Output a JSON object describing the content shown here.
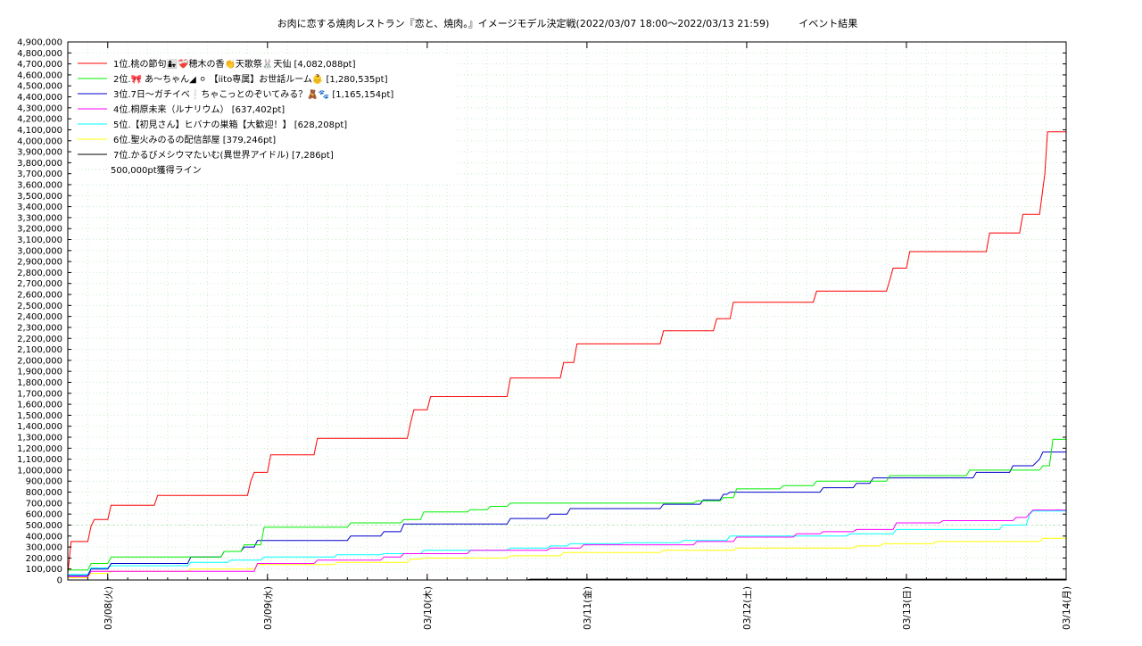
{
  "chart_data": {
    "type": "line",
    "title": "お肉に恋する焼肉レストラン『恋と、焼肉。』イメージモデル決定戦(2022/03/07 18:00～2022/03/13 21:59)　　　イベント結果",
    "xlabel": "",
    "ylabel": "",
    "x_range": [
      "2022-03-07 18:00",
      "2022-03-14 00:00"
    ],
    "ylim": [
      0,
      4900000
    ],
    "ytick_step": 100000,
    "grid": true,
    "legend_position": "top-left",
    "x_ticks": [
      {
        "label": "03/08(火)",
        "t": 6
      },
      {
        "label": "03/09(水)",
        "t": 30
      },
      {
        "label": "03/10(木)",
        "t": 54
      },
      {
        "label": "03/11(金)",
        "t": 78
      },
      {
        "label": "03/12(土)",
        "t": 102
      },
      {
        "label": "03/13(日)",
        "t": 126
      },
      {
        "label": "03/14(月)",
        "t": 150
      }
    ],
    "t_max": 150,
    "series": [
      {
        "name": "1位.桃の節句👩‍👧❤️‍🩹穂木の香👏天歌祭🐰天仙 [4,082,088pt]",
        "color": "#ff0000",
        "points": [
          [
            0,
            60000
          ],
          [
            0.5,
            350000
          ],
          [
            3,
            350000
          ],
          [
            3.5,
            490000
          ],
          [
            4,
            550000
          ],
          [
            6,
            550000
          ],
          [
            6.5,
            680000
          ],
          [
            13,
            680000
          ],
          [
            13.5,
            770000
          ],
          [
            27,
            770000
          ],
          [
            27.5,
            900000
          ],
          [
            28,
            980000
          ],
          [
            30,
            980000
          ],
          [
            30.5,
            1140000
          ],
          [
            37,
            1140000
          ],
          [
            37.5,
            1290000
          ],
          [
            51,
            1290000
          ],
          [
            51.5,
            1430000
          ],
          [
            52,
            1550000
          ],
          [
            54,
            1550000
          ],
          [
            54.5,
            1670000
          ],
          [
            66,
            1670000
          ],
          [
            66.5,
            1840000
          ],
          [
            74,
            1840000
          ],
          [
            74.5,
            1980000
          ],
          [
            76,
            1980000
          ],
          [
            76.5,
            2150000
          ],
          [
            89,
            2150000
          ],
          [
            89.5,
            2270000
          ],
          [
            97,
            2270000
          ],
          [
            97.5,
            2380000
          ],
          [
            99.5,
            2380000
          ],
          [
            100,
            2530000
          ],
          [
            112,
            2530000
          ],
          [
            112.5,
            2630000
          ],
          [
            123,
            2630000
          ],
          [
            123.5,
            2730000
          ],
          [
            124,
            2840000
          ],
          [
            126,
            2840000
          ],
          [
            126.5,
            2990000
          ],
          [
            138,
            2990000
          ],
          [
            138.5,
            3160000
          ],
          [
            143,
            3160000
          ],
          [
            143.5,
            3330000
          ],
          [
            146,
            3330000
          ],
          [
            146.8,
            3700000
          ],
          [
            147.2,
            4082088
          ],
          [
            150,
            4082088
          ]
        ]
      },
      {
        "name": "2位.🎀 あ〜ちゃん◢ ⚪ 【iito専属】お世話ルーム👶 [1,280,535pt]",
        "color": "#00ee00",
        "points": [
          [
            0,
            90000
          ],
          [
            3,
            90000
          ],
          [
            3.5,
            150000
          ],
          [
            6,
            150000
          ],
          [
            6.5,
            210000
          ],
          [
            23,
            210000
          ],
          [
            23.5,
            260000
          ],
          [
            26,
            260000
          ],
          [
            26.5,
            320000
          ],
          [
            29,
            320000
          ],
          [
            29.5,
            480000
          ],
          [
            42,
            480000
          ],
          [
            42.5,
            520000
          ],
          [
            50,
            520000
          ],
          [
            50.5,
            550000
          ],
          [
            53,
            550000
          ],
          [
            53.5,
            620000
          ],
          [
            60,
            620000
          ],
          [
            60.5,
            640000
          ],
          [
            63,
            640000
          ],
          [
            63.5,
            670000
          ],
          [
            66,
            670000
          ],
          [
            66.5,
            700000
          ],
          [
            94,
            700000
          ],
          [
            94.5,
            720000
          ],
          [
            98,
            720000
          ],
          [
            98.5,
            750000
          ],
          [
            100,
            750000
          ],
          [
            100.5,
            830000
          ],
          [
            107,
            830000
          ],
          [
            107.5,
            860000
          ],
          [
            112,
            860000
          ],
          [
            112.5,
            900000
          ],
          [
            123,
            900000
          ],
          [
            123.5,
            950000
          ],
          [
            135,
            950000
          ],
          [
            135.5,
            1000000
          ],
          [
            146,
            1000000
          ],
          [
            146.5,
            1040000
          ],
          [
            147.5,
            1040000
          ],
          [
            148,
            1280535
          ],
          [
            150,
            1280535
          ]
        ]
      },
      {
        "name": "3位.7日〜ガチイベ❕ちゃこっとのぞいてみる？🧸🐾 [1,165,154pt]",
        "color": "#0000cc",
        "points": [
          [
            0,
            40000
          ],
          [
            3,
            40000
          ],
          [
            3.5,
            100000
          ],
          [
            6,
            100000
          ],
          [
            6.5,
            150000
          ],
          [
            18,
            150000
          ],
          [
            18.5,
            210000
          ],
          [
            23,
            210000
          ],
          [
            23.5,
            260000
          ],
          [
            26,
            260000
          ],
          [
            26.5,
            300000
          ],
          [
            28,
            300000
          ],
          [
            28.5,
            360000
          ],
          [
            42,
            360000
          ],
          [
            42.5,
            400000
          ],
          [
            47,
            400000
          ],
          [
            47.5,
            440000
          ],
          [
            50,
            440000
          ],
          [
            50.5,
            510000
          ],
          [
            66,
            510000
          ],
          [
            66.5,
            560000
          ],
          [
            72,
            560000
          ],
          [
            72.5,
            600000
          ],
          [
            75,
            600000
          ],
          [
            75.5,
            650000
          ],
          [
            89,
            650000
          ],
          [
            89.5,
            690000
          ],
          [
            95,
            690000
          ],
          [
            95.5,
            730000
          ],
          [
            98,
            730000
          ],
          [
            98.5,
            780000
          ],
          [
            99,
            780000
          ],
          [
            99.5,
            800000
          ],
          [
            113,
            800000
          ],
          [
            113.5,
            840000
          ],
          [
            118,
            840000
          ],
          [
            118.5,
            880000
          ],
          [
            120.5,
            880000
          ],
          [
            121,
            930000
          ],
          [
            136,
            930000
          ],
          [
            136.5,
            980000
          ],
          [
            141.5,
            980000
          ],
          [
            142,
            1040000
          ],
          [
            145,
            1040000
          ],
          [
            146,
            1100000
          ],
          [
            146.5,
            1165154
          ],
          [
            150,
            1165154
          ]
        ]
      },
      {
        "name": "4位.桐原未来（ルナリウム） [637,402pt]",
        "color": "#ff00ff",
        "points": [
          [
            0,
            30000
          ],
          [
            3,
            30000
          ],
          [
            3.5,
            80000
          ],
          [
            28,
            80000
          ],
          [
            28.5,
            150000
          ],
          [
            37,
            150000
          ],
          [
            37.5,
            180000
          ],
          [
            47,
            180000
          ],
          [
            47.5,
            210000
          ],
          [
            50,
            210000
          ],
          [
            50.5,
            240000
          ],
          [
            60,
            240000
          ],
          [
            60.5,
            270000
          ],
          [
            72,
            270000
          ],
          [
            72.5,
            290000
          ],
          [
            77,
            290000
          ],
          [
            77.5,
            320000
          ],
          [
            94,
            320000
          ],
          [
            94.5,
            350000
          ],
          [
            100,
            350000
          ],
          [
            100.5,
            390000
          ],
          [
            109,
            390000
          ],
          [
            109.5,
            420000
          ],
          [
            113,
            420000
          ],
          [
            113.5,
            440000
          ],
          [
            118,
            440000
          ],
          [
            118.5,
            460000
          ],
          [
            124,
            460000
          ],
          [
            124.5,
            520000
          ],
          [
            131,
            520000
          ],
          [
            131.5,
            540000
          ],
          [
            142,
            540000
          ],
          [
            142.5,
            570000
          ],
          [
            144,
            570000
          ],
          [
            145,
            637402
          ],
          [
            150,
            637402
          ]
        ]
      },
      {
        "name": "5位.【初見さん】ヒバナの巣箱【大歓迎！】 [628,208pt]",
        "color": "#00ffff",
        "points": [
          [
            0,
            50000
          ],
          [
            3,
            50000
          ],
          [
            3.5,
            110000
          ],
          [
            6,
            110000
          ],
          [
            6.5,
            130000
          ],
          [
            18,
            130000
          ],
          [
            18.5,
            160000
          ],
          [
            24,
            160000
          ],
          [
            24.5,
            180000
          ],
          [
            29,
            180000
          ],
          [
            29.5,
            210000
          ],
          [
            40,
            210000
          ],
          [
            40.5,
            230000
          ],
          [
            47,
            230000
          ],
          [
            47.5,
            240000
          ],
          [
            53,
            240000
          ],
          [
            53.5,
            270000
          ],
          [
            66,
            270000
          ],
          [
            66.5,
            290000
          ],
          [
            72,
            290000
          ],
          [
            72.5,
            310000
          ],
          [
            75,
            310000
          ],
          [
            75.5,
            330000
          ],
          [
            83,
            330000
          ],
          [
            83.5,
            340000
          ],
          [
            92,
            340000
          ],
          [
            92.5,
            360000
          ],
          [
            99,
            360000
          ],
          [
            99.5,
            400000
          ],
          [
            117,
            400000
          ],
          [
            117.5,
            420000
          ],
          [
            124,
            420000
          ],
          [
            124.5,
            460000
          ],
          [
            140,
            460000
          ],
          [
            140.5,
            500000
          ],
          [
            144,
            500000
          ],
          [
            144.5,
            600000
          ],
          [
            145,
            628208
          ],
          [
            150,
            628208
          ]
        ]
      },
      {
        "name": "6位.聖火みのるの配信部屋 [379,246pt]",
        "color": "#ffff00",
        "points": [
          [
            0,
            20000
          ],
          [
            3,
            20000
          ],
          [
            3.5,
            60000
          ],
          [
            6,
            60000
          ],
          [
            6.5,
            80000
          ],
          [
            18,
            80000
          ],
          [
            18.5,
            100000
          ],
          [
            28,
            100000
          ],
          [
            28.5,
            140000
          ],
          [
            40,
            140000
          ],
          [
            40.5,
            160000
          ],
          [
            51,
            160000
          ],
          [
            51.5,
            190000
          ],
          [
            53,
            190000
          ],
          [
            53.5,
            200000
          ],
          [
            66,
            200000
          ],
          [
            66.5,
            220000
          ],
          [
            74,
            220000
          ],
          [
            74.5,
            250000
          ],
          [
            89,
            250000
          ],
          [
            89.5,
            270000
          ],
          [
            100,
            270000
          ],
          [
            100.5,
            290000
          ],
          [
            118,
            290000
          ],
          [
            118.5,
            310000
          ],
          [
            122,
            310000
          ],
          [
            122.5,
            330000
          ],
          [
            130,
            330000
          ],
          [
            130.5,
            350000
          ],
          [
            146,
            350000
          ],
          [
            146.5,
            379246
          ],
          [
            150,
            379246
          ]
        ]
      },
      {
        "name": "7位.かるびメシウマたいむ(異世界アイドル) [7,286pt]",
        "color": "#000000",
        "points": [
          [
            0,
            0
          ],
          [
            69,
            0
          ],
          [
            69.5,
            7286
          ],
          [
            150,
            7286
          ]
        ]
      }
    ],
    "reference_line": {
      "name": "500,000pt獲得ライン",
      "value": 500000,
      "color": "#b8e8b8"
    }
  }
}
